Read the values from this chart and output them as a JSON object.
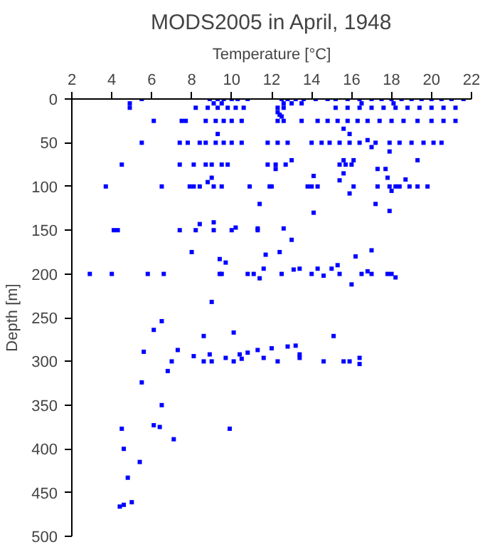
{
  "chart_data": {
    "type": "scatter",
    "title": "MODS2005 in April, 1948",
    "xlabel": "Temperature [°C]",
    "ylabel": "Depth [m]",
    "xlim": [
      2,
      22
    ],
    "xticks": [
      2,
      4,
      6,
      8,
      10,
      12,
      14,
      16,
      18,
      20,
      22
    ],
    "ylim": [
      500,
      0
    ],
    "yticks": [
      0,
      50,
      100,
      150,
      200,
      250,
      300,
      350,
      400,
      450,
      500
    ],
    "grid": false,
    "marker": "square",
    "series": [
      {
        "color": "#0000ff",
        "x": [
          5.5,
          8.9,
          9.3,
          9.6,
          10.0,
          10.3,
          10.8,
          12.5,
          12.8,
          13.2,
          13.6,
          14.2,
          14.8,
          15.2,
          15.8,
          16.4,
          17.0,
          17.5,
          18.0,
          18.5,
          19.0,
          19.5,
          20.0,
          20.5,
          21.0,
          21.6,
          4.9,
          9.1,
          9.5,
          12.6,
          13.0,
          13.5,
          16.5,
          18.1,
          4.9,
          8.2,
          8.8,
          9.3,
          9.8,
          10.2,
          10.6,
          12.3,
          12.6,
          15.2,
          15.8,
          16.4,
          17.0,
          17.6,
          18.2,
          18.8,
          19.4,
          20.0,
          20.6,
          21.2,
          12.3,
          12.5,
          12.4,
          6.1,
          7.5,
          7.7,
          8.7,
          9.2,
          9.6,
          10.0,
          10.5,
          12.3,
          12.6,
          13.5,
          14.3,
          14.8,
          15.3,
          15.8,
          16.3,
          16.8,
          17.4,
          18.0,
          18.6,
          19.3,
          20.0,
          20.6,
          21.2,
          15.6,
          9.3,
          15.9,
          5.5,
          7.4,
          7.8,
          8.4,
          8.7,
          9.2,
          9.6,
          10.0,
          10.5,
          11.8,
          12.3,
          12.8,
          14.0,
          14.5,
          14.9,
          15.4,
          15.9,
          16.4,
          17.2,
          17.9,
          18.4,
          19.0,
          19.6,
          20.1,
          20.5,
          16.8,
          17.0,
          17.9,
          13.0,
          15.6,
          16.1,
          19.3,
          4.5,
          7.4,
          8.1,
          8.7,
          9.0,
          9.5,
          9.8,
          11.8,
          12.2,
          12.7,
          15.4,
          15.7,
          16.0,
          12.2,
          17.3,
          17.7,
          15.6,
          9.0,
          17.8,
          18.7,
          8.8,
          15.4,
          14.1,
          3.7,
          6.5,
          7.9,
          8.1,
          8.4,
          9.1,
          9.5,
          10.9,
          11.9,
          12.0,
          13.8,
          14.0,
          14.3,
          16.1,
          17.3,
          17.9,
          18.2,
          18.4,
          18.9,
          19.3,
          19.8,
          15.9,
          18.0,
          11.4,
          17.2,
          14.1,
          17.9,
          4.1,
          4.3,
          7.4,
          8.2,
          9.1,
          10.0,
          11.3,
          12.6,
          8.4,
          9.1,
          10.2,
          11.3,
          13.0,
          8.0,
          17.0,
          9.4,
          9.7,
          11.7,
          12.4,
          16.2,
          2.9,
          4.0,
          5.8,
          6.6,
          9.4,
          9.5,
          10.8,
          11.1,
          11.4,
          11.6,
          12.5,
          13.1,
          13.4,
          14.0,
          14.3,
          14.6,
          15.0,
          15.3,
          15.4,
          16.0,
          16.5,
          16.8,
          17.0,
          17.8,
          18.0,
          18.2,
          9.0,
          6.5,
          6.1,
          8.6,
          10.1,
          15.1,
          5.6,
          7.3,
          7.0,
          8.1,
          8.6,
          8.9,
          9.0,
          9.7,
          10.1,
          10.4,
          10.5,
          10.8,
          11.3,
          11.6,
          12.0,
          12.3,
          12.8,
          13.2,
          13.4,
          13.4,
          14.6,
          15.6,
          15.9,
          16.4,
          16.4,
          6.8,
          5.5,
          6.5,
          4.5,
          6.1,
          6.4,
          9.9,
          7.1,
          4.6,
          5.4,
          4.8,
          5.0,
          4.6,
          4.4
        ],
        "values": [
          0,
          0,
          0,
          0,
          0,
          0,
          0,
          0,
          0,
          0,
          0,
          0,
          0,
          0,
          0,
          0,
          0,
          0,
          0,
          0,
          0,
          0,
          0,
          0,
          0,
          0,
          5,
          5,
          5,
          5,
          5,
          5,
          5,
          5,
          10,
          10,
          10,
          10,
          10,
          10,
          10,
          10,
          10,
          10,
          10,
          10,
          10,
          10,
          10,
          10,
          10,
          10,
          10,
          10,
          15,
          20,
          18,
          25,
          25,
          25,
          25,
          25,
          25,
          25,
          25,
          25,
          25,
          25,
          25,
          25,
          25,
          25,
          25,
          25,
          25,
          25,
          25,
          25,
          25,
          25,
          25,
          34,
          40,
          40,
          50,
          50,
          50,
          50,
          50,
          50,
          50,
          50,
          50,
          50,
          50,
          50,
          50,
          50,
          50,
          50,
          50,
          50,
          50,
          50,
          50,
          50,
          50,
          50,
          50,
          47,
          55,
          60,
          70,
          70,
          70,
          70,
          75,
          75,
          75,
          75,
          75,
          75,
          75,
          75,
          75,
          75,
          75,
          75,
          75,
          80,
          80,
          80,
          85,
          90,
          90,
          92,
          95,
          93,
          88,
          100,
          100,
          100,
          100,
          100,
          100,
          100,
          100,
          100,
          100,
          100,
          100,
          100,
          100,
          100,
          100,
          100,
          100,
          100,
          100,
          100,
          108,
          105,
          120,
          120,
          130,
          128,
          150,
          150,
          150,
          150,
          150,
          150,
          150,
          148,
          143,
          141,
          147,
          148,
          161,
          175,
          173,
          183,
          187,
          178,
          175,
          180,
          200,
          200,
          200,
          200,
          200,
          200,
          200,
          200,
          205,
          194,
          200,
          195,
          194,
          200,
          194,
          202,
          194,
          190,
          200,
          212,
          200,
          197,
          200,
          200,
          200,
          204,
          232,
          254,
          264,
          271,
          267,
          271,
          289,
          287,
          300,
          294,
          300,
          292,
          300,
          296,
          300,
          292,
          297,
          290,
          287,
          296,
          285,
          300,
          283,
          282,
          292,
          296,
          300,
          300,
          300,
          296,
          303,
          311,
          324,
          350,
          377,
          373,
          375,
          377,
          389,
          400,
          415,
          433,
          461,
          464,
          466
        ]
      }
    ]
  }
}
